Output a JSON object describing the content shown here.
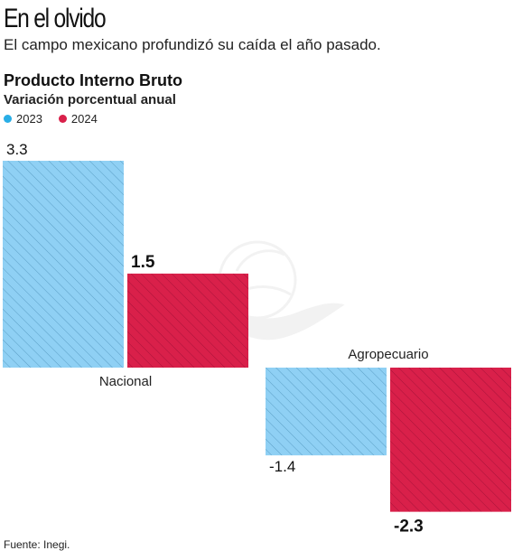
{
  "headline": "En el olvido",
  "subhead": "El campo mexicano profundizó su caída el año pasado.",
  "source": "Fuente: Inegi.",
  "chart_data": {
    "type": "bar",
    "title": "Producto Interno Bruto",
    "subtitle": "Variación porcentual anual",
    "categories": [
      "Nacional",
      "Agropecuario"
    ],
    "series": [
      {
        "name": "2023",
        "color": "#8fd0f4",
        "legend_color": "#29aee6",
        "values": [
          3.3,
          -1.4
        ]
      },
      {
        "name": "2024",
        "color": "#d9204a",
        "legend_color": "#d9204a",
        "values": [
          1.5,
          -2.3
        ]
      }
    ],
    "value_labels": [
      [
        "3.3",
        "-1.4"
      ],
      [
        "1.5",
        "-2.3"
      ]
    ],
    "legend_position": "top-left",
    "grid": false
  }
}
